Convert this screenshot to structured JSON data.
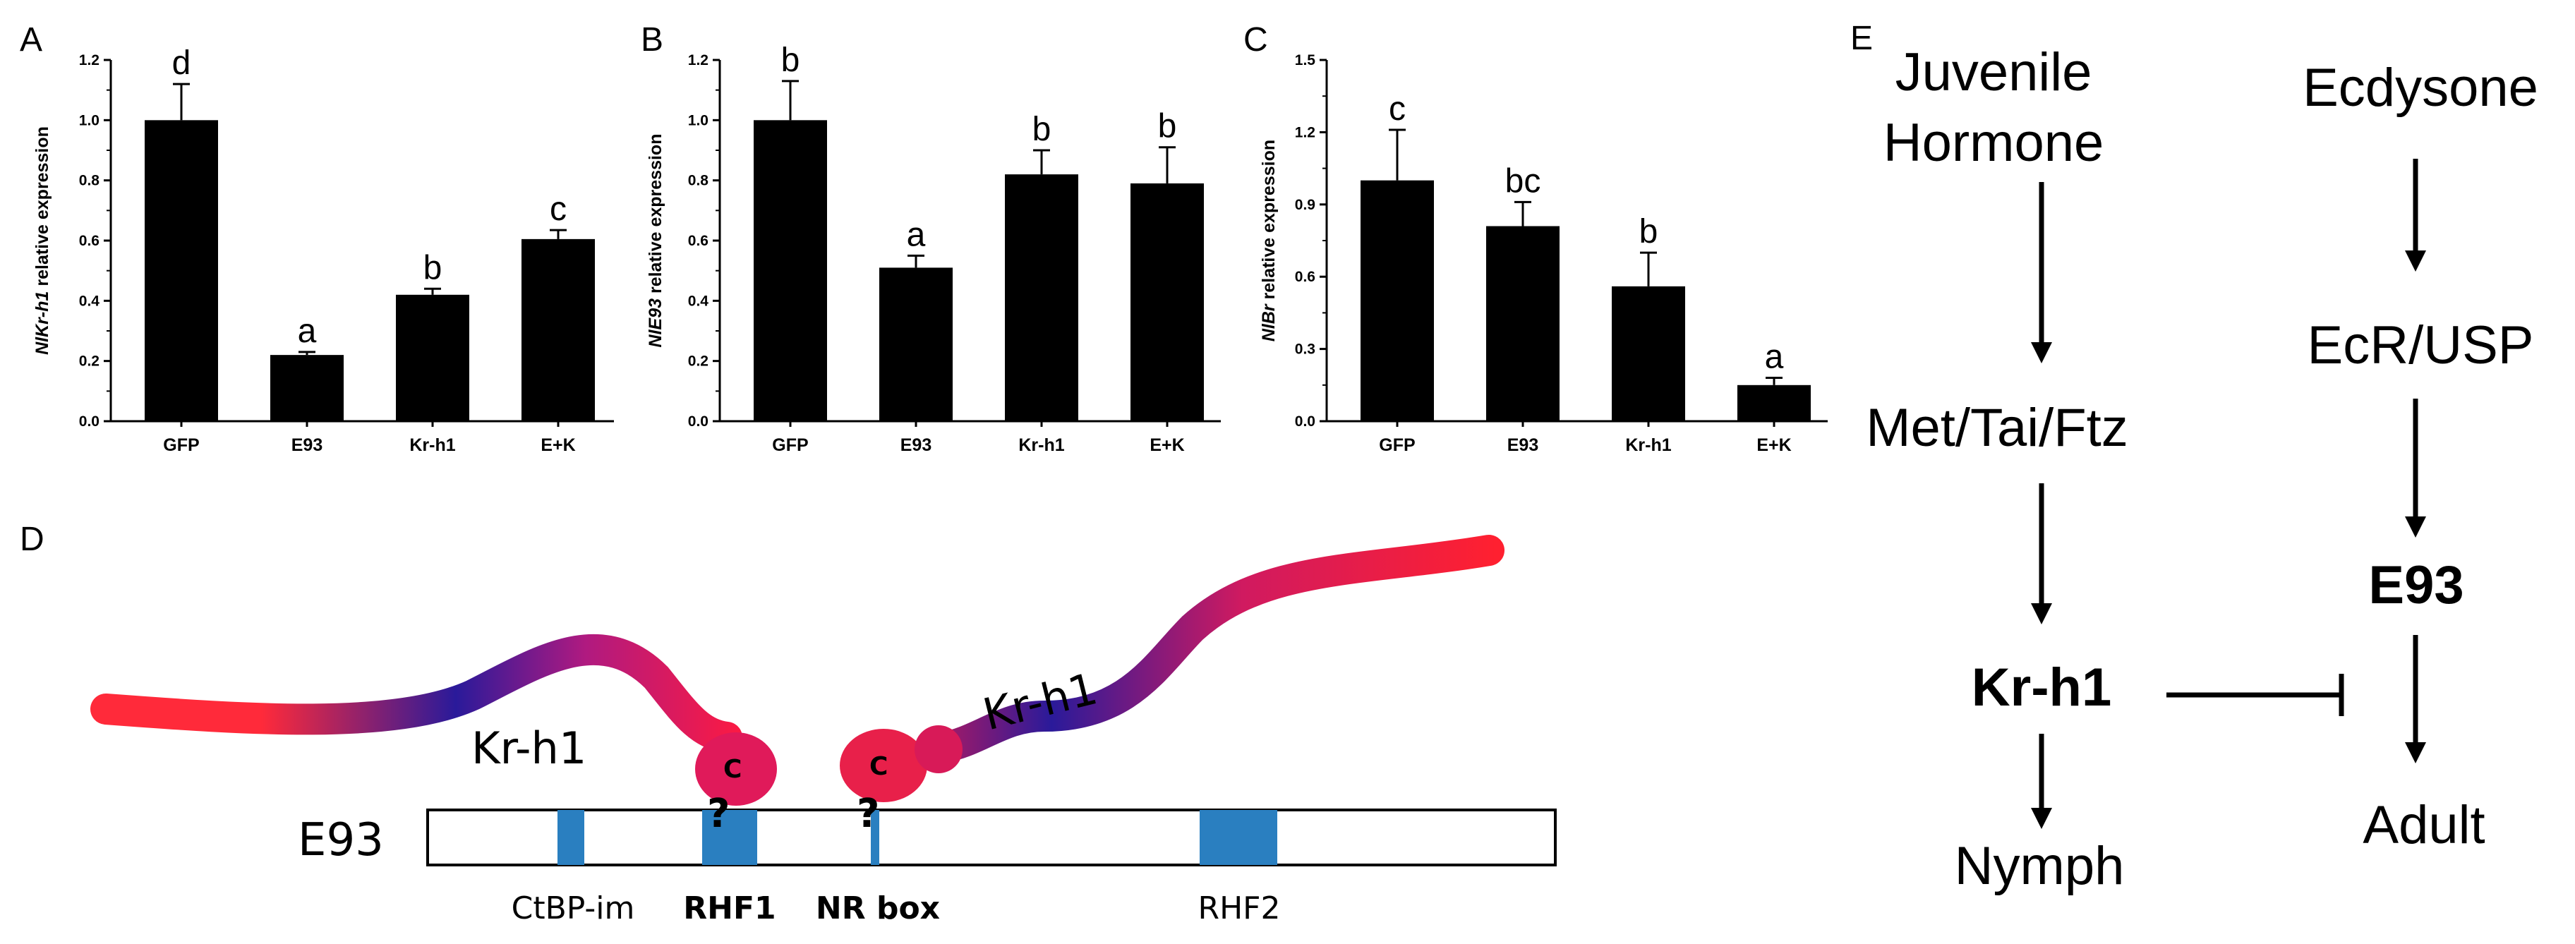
{
  "chart_data": [
    {
      "panel": "A",
      "type": "bar",
      "categories": [
        "GFP",
        "E93",
        "Kr-h1",
        "E+K"
      ],
      "values": [
        1.0,
        0.22,
        0.42,
        0.605
      ],
      "errors": [
        0.12,
        0.01,
        0.02,
        0.03
      ],
      "significance": [
        "d",
        "a",
        "b",
        "c"
      ],
      "ylabel": {
        "italic": "Nl",
        "italic2": "Kr-h1",
        "rest": " relative expression"
      },
      "ylim": [
        0,
        1.2
      ],
      "yticks": [
        "0.0",
        "0.2",
        "0.4",
        "0.6",
        "0.8",
        "1.0",
        "1.2"
      ]
    },
    {
      "panel": "B",
      "type": "bar",
      "categories": [
        "GFP",
        "E93",
        "Kr-h1",
        "E+K"
      ],
      "values": [
        1.0,
        0.51,
        0.82,
        0.79
      ],
      "errors": [
        0.13,
        0.04,
        0.08,
        0.12
      ],
      "significance": [
        "b",
        "a",
        "b",
        "b"
      ],
      "ylabel": {
        "italic": "Nl",
        "italic2": "E93",
        "rest": " relative expression"
      },
      "ylim": [
        0,
        1.2
      ],
      "yticks": [
        "0.0",
        "0.2",
        "0.4",
        "0.6",
        "0.8",
        "1.0",
        "1.2"
      ]
    },
    {
      "panel": "C",
      "type": "bar",
      "categories": [
        "GFP",
        "E93",
        "Kr-h1",
        "E+K"
      ],
      "values": [
        1.0,
        0.81,
        0.56,
        0.15
      ],
      "errors": [
        0.21,
        0.1,
        0.14,
        0.03
      ],
      "significance": [
        "c",
        "bc",
        "b",
        "a"
      ],
      "ylabel": {
        "italic": "Nl",
        "italic2": "Br",
        "rest": " relative expression"
      },
      "ylim": [
        0,
        1.5
      ],
      "yticks": [
        "0.0",
        "0.3",
        "0.6",
        "0.9",
        "1.2",
        "1.5"
      ]
    }
  ],
  "diagram": {
    "panel": "D",
    "protein_label": "E93",
    "left_krh1": "Kr-h1",
    "right_krh1": "Kr-h1",
    "c_terminus": "C",
    "question_mark": "?",
    "domains": {
      "ctbp": "CtBP-im",
      "rhf1": "RHF1",
      "nrbox": "NR box",
      "rhf2": "RHF2"
    },
    "colors": {
      "domain": "#2a7fc0",
      "question": "#f5b520"
    }
  },
  "pathway": {
    "panel": "E",
    "juvenile_line1": "Juvenile",
    "juvenile_line2": "Hormone",
    "met": "Met/Tai/Ftz",
    "krh1": "Kr-h1",
    "nymph": "Nymph",
    "ecdysone": "Ecdysone",
    "ecr": "EcR/USP",
    "e93": "E93",
    "adult": "Adult"
  }
}
